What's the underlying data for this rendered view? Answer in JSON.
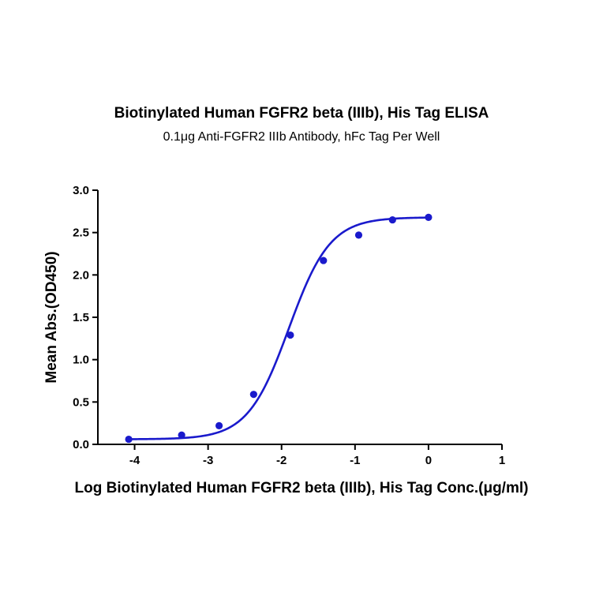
{
  "chart_data": {
    "type": "scatter",
    "title": "Biotinylated Human FGFR2 beta (IIIb), His Tag ELISA",
    "subtitle": "0.1μg Anti-FGFR2 IIIb Antibody, hFc Tag Per Well",
    "xlabel": "Log Biotinylated Human FGFR2 beta (IIIb), His Tag Conc.(μg/ml)",
    "ylabel": "Mean Abs.(OD450)",
    "xlim": [
      -4.5,
      1
    ],
    "ylim": [
      0,
      3
    ],
    "xticks": [
      -4,
      -3,
      -2,
      -1,
      0,
      1
    ],
    "yticks": [
      0.0,
      0.5,
      1.0,
      1.5,
      2.0,
      2.5,
      3.0
    ],
    "xtick_labels": [
      "-4",
      "-3",
      "-2",
      "-1",
      "0",
      "1"
    ],
    "ytick_labels": [
      "0.0",
      "0.5",
      "1.0",
      "1.5",
      "2.0",
      "2.5",
      "3.0"
    ],
    "grid": false,
    "series": [
      {
        "color": "#1a1acc",
        "points": [
          {
            "x": -4.08,
            "y": 0.06
          },
          {
            "x": -3.36,
            "y": 0.11
          },
          {
            "x": -2.85,
            "y": 0.22
          },
          {
            "x": -2.38,
            "y": 0.59
          },
          {
            "x": -1.88,
            "y": 1.29
          },
          {
            "x": -1.43,
            "y": 2.17
          },
          {
            "x": -0.95,
            "y": 2.47
          },
          {
            "x": -0.49,
            "y": 2.65
          },
          {
            "x": 0.0,
            "y": 2.68
          }
        ],
        "fit": {
          "model": "4PL",
          "bottom": 0.06,
          "top": 2.68,
          "logEC50": -1.9,
          "hill": 1.55
        }
      }
    ]
  }
}
